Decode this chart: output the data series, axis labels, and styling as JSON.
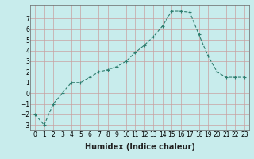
{
  "x": [
    0,
    1,
    2,
    3,
    4,
    5,
    6,
    7,
    8,
    9,
    10,
    11,
    12,
    13,
    14,
    15,
    16,
    17,
    18,
    19,
    20,
    21,
    22,
    23
  ],
  "y": [
    -2,
    -3,
    -1,
    0,
    1,
    1,
    1.5,
    2,
    2.2,
    2.5,
    3,
    3.8,
    4.5,
    5.3,
    6.3,
    7.7,
    7.7,
    7.6,
    5.5,
    3.5,
    2,
    1.5,
    1.5,
    1.5
  ],
  "line_color": "#2e7d6e",
  "marker": "+",
  "marker_size": 3,
  "linewidth": 0.8,
  "xlabel": "Humidex (Indice chaleur)",
  "xlabel_fontsize": 7,
  "yticks": [
    -3,
    -2,
    -1,
    0,
    1,
    2,
    3,
    4,
    5,
    6,
    7
  ],
  "ylim": [
    -3.5,
    8.3
  ],
  "xlim": [
    -0.5,
    23.5
  ],
  "xtick_labels": [
    "0",
    "1",
    "2",
    "3",
    "4",
    "5",
    "6",
    "7",
    "8",
    "9",
    "10",
    "11",
    "12",
    "13",
    "14",
    "15",
    "16",
    "17",
    "18",
    "19",
    "20",
    "21",
    "22",
    "23"
  ],
  "bg_color": "#c8ecec",
  "grid_color": "#c8a0a0",
  "tick_fontsize": 5.5,
  "title": ""
}
